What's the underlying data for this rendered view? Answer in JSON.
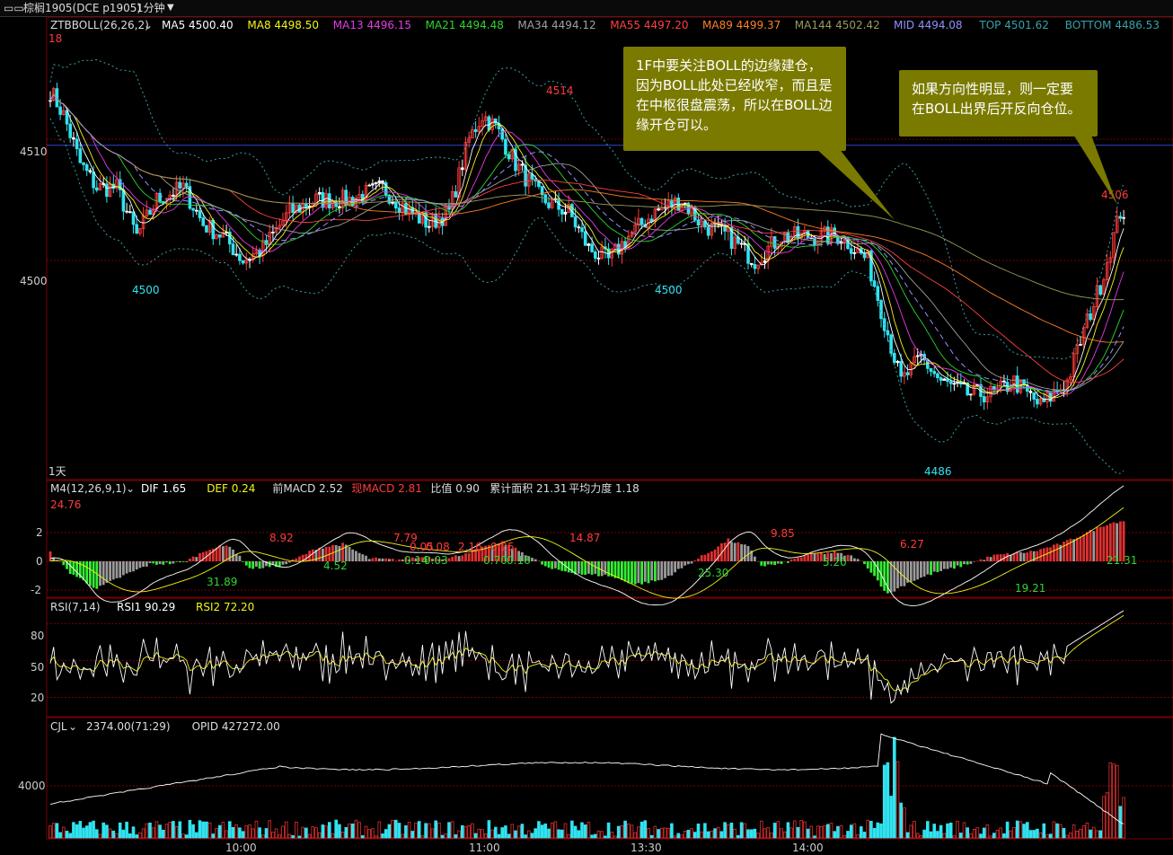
{
  "window": {
    "title_icon": "▭▭",
    "symbol": "棕榈1905(DCE p1905)",
    "period": "1分钟"
  },
  "colors": {
    "up": "#ff3b3b",
    "down": "#31e3f0",
    "flat": "#ffffff",
    "grid": "#7a0000",
    "ma5": "#ffffff",
    "ma8": "#f4f41a",
    "ma13": "#e33ce3",
    "ma21": "#2fd62f",
    "ma34": "#a0a0a0",
    "ma55": "#ff4040",
    "ma89": "#ff7f27",
    "ma144": "#9a9a5a",
    "mid": "#9090ff",
    "top": "#3aa0a8",
    "bottom": "#3aa0a8"
  },
  "main_panel": {
    "indicator": "ZTBBOLL(26,26,2)",
    "legend": [
      {
        "label": "MA5",
        "value": "4500.40",
        "color": "#ffffff"
      },
      {
        "label": "MA8",
        "value": "4498.50",
        "color": "#f4f41a"
      },
      {
        "label": "MA13",
        "value": "4496.15",
        "color": "#e33ce3"
      },
      {
        "label": "MA21",
        "value": "4494.48",
        "color": "#2fd62f"
      },
      {
        "label": "MA34",
        "value": "4494.12",
        "color": "#a0a0a0"
      },
      {
        "label": "MA55",
        "value": "4497.20",
        "color": "#ff4040"
      },
      {
        "label": "MA89",
        "value": "4499.37",
        "color": "#ff7f27"
      },
      {
        "label": "MA144",
        "value": "4502.42",
        "color": "#9a9a5a"
      },
      {
        "label": "MID",
        "value": "4494.08",
        "color": "#9090ff"
      },
      {
        "label": "TOP",
        "value": "4501.62",
        "color": "#3aa0a8"
      },
      {
        "label": "BOTTOM",
        "value": "4486.53",
        "color": "#3aa0a8"
      }
    ],
    "corner_top_left": "18",
    "corner_bottom_left": "1天",
    "price_annotations": [
      "4514",
      "4500",
      "4500",
      "4486",
      "4506"
    ]
  },
  "callouts": [
    {
      "text": "1F中要关注BOLL的边缘建仓，因为BOLL此处已经收窄，而且是在中枢很盘震荡，所以在BOLL边缘开仓可以。"
    },
    {
      "text": "如果方向性明显，则一定要在BOLL出界后开反向仓位。"
    }
  ],
  "macd_panel": {
    "indicator": "M4(12,26,9,1)",
    "legend": [
      {
        "label": "DIF",
        "value": "1.65",
        "color": "#ffffff"
      },
      {
        "label": "DEF",
        "value": "0.24",
        "color": "#f4f41a"
      },
      {
        "label": "前MACD",
        "value": "2.52",
        "color": "#dddddd"
      },
      {
        "label": "现MACD",
        "value": "2.81",
        "color": "#ff3b3b"
      },
      {
        "label": "比值",
        "value": "0.90",
        "color": "#dddddd"
      },
      {
        "label": "累计面积",
        "value": "21.31",
        "color": "#dddddd"
      },
      {
        "label": "平均力度",
        "value": "1.18",
        "color": "#dddddd"
      }
    ],
    "corner_value": "24.76",
    "annotations": [
      {
        "text": "8.92",
        "color": "#ff3b3b"
      },
      {
        "text": "7.79",
        "color": "#ff3b3b"
      },
      {
        "text": "0.05",
        "color": "#ff3b3b"
      },
      {
        "text": "0.08",
        "color": "#ff3b3b"
      },
      {
        "text": "2.16",
        "color": "#ff3b3b"
      },
      {
        "text": "0.25",
        "color": "#ff3b3b"
      },
      {
        "text": "14.87",
        "color": "#ff3b3b"
      },
      {
        "text": "9.85",
        "color": "#ff3b3b"
      },
      {
        "text": "6.27",
        "color": "#ff3b3b"
      },
      {
        "text": "31.89",
        "color": "#2fd62f"
      },
      {
        "text": "4.52",
        "color": "#2fd62f"
      },
      {
        "text": "0.14",
        "color": "#2fd62f"
      },
      {
        "text": "0.03",
        "color": "#2fd62f"
      },
      {
        "text": "0.70",
        "color": "#2fd62f"
      },
      {
        "text": "0.16",
        "color": "#2fd62f"
      },
      {
        "text": "25.30",
        "color": "#2fd62f"
      },
      {
        "text": "5.20",
        "color": "#2fd62f"
      },
      {
        "text": "19.21",
        "color": "#2fd62f"
      },
      {
        "text": "21.31",
        "color": "#2fd62f"
      }
    ]
  },
  "rsi_panel": {
    "indicator": "RSI(7,14)",
    "legend": [
      {
        "label": "RSI1",
        "value": "90.29",
        "color": "#ffffff"
      },
      {
        "label": "RSI2",
        "value": "72.20",
        "color": "#f4f41a"
      }
    ]
  },
  "vol_panel": {
    "indicator": "CJL",
    "legend": [
      {
        "label": "",
        "value": "2374.00(71:29)",
        "color": "#dddddd"
      },
      {
        "label": "OPID",
        "value": "427272.00",
        "color": "#dddddd"
      }
    ]
  },
  "x_axis": {
    "ticks": [
      "10:00",
      "11:00",
      "13:30",
      "14:00"
    ]
  },
  "chart_data": [
    {
      "type": "candlestick",
      "title": "棕榈1905(DCE p1905) 1分钟",
      "ylim": [
        4482,
        4520
      ],
      "y_ticks": [
        4500,
        4510
      ],
      "x_ticks": [
        "10:00",
        "11:00",
        "13:30",
        "14:00"
      ],
      "reference_line": 4509.5,
      "close_path": [
        [
          0,
          4514
        ],
        [
          4,
          4512
        ],
        [
          9,
          4508
        ],
        [
          14,
          4506
        ],
        [
          20,
          4506
        ],
        [
          26,
          4502
        ],
        [
          32,
          4505
        ],
        [
          40,
          4506
        ],
        [
          46,
          4503
        ],
        [
          52,
          4502
        ],
        [
          58,
          4500
        ],
        [
          64,
          4501
        ],
        [
          72,
          4504
        ],
        [
          80,
          4505
        ],
        [
          90,
          4505
        ],
        [
          100,
          4506
        ],
        [
          108,
          4504
        ],
        [
          114,
          4503
        ],
        [
          120,
          4504
        ],
        [
          126,
          4510
        ],
        [
          130,
          4512
        ],
        [
          134,
          4511
        ],
        [
          140,
          4508
        ],
        [
          148,
          4505
        ],
        [
          156,
          4504
        ],
        [
          162,
          4501
        ],
        [
          168,
          4500
        ],
        [
          174,
          4502
        ],
        [
          182,
          4504
        ],
        [
          190,
          4505
        ],
        [
          196,
          4503
        ],
        [
          204,
          4502
        ],
        [
          212,
          4500
        ],
        [
          220,
          4502
        ],
        [
          230,
          4502
        ],
        [
          238,
          4502
        ],
        [
          246,
          4500
        ],
        [
          252,
          4494
        ],
        [
          256,
          4490
        ],
        [
          262,
          4492
        ],
        [
          268,
          4490
        ],
        [
          276,
          4489
        ],
        [
          284,
          4489
        ],
        [
          290,
          4490
        ],
        [
          298,
          4488
        ],
        [
          306,
          4490
        ],
        [
          312,
          4495
        ],
        [
          316,
          4498
        ],
        [
          320,
          4502
        ],
        [
          322,
          4504
        ]
      ],
      "series": [
        {
          "name": "MA5",
          "last": 4500.4
        },
        {
          "name": "MA8",
          "last": 4498.5
        },
        {
          "name": "MA13",
          "last": 4496.15
        },
        {
          "name": "MA21",
          "last": 4494.48
        },
        {
          "name": "MA34",
          "last": 4494.12
        },
        {
          "name": "MA55",
          "last": 4497.2
        },
        {
          "name": "MA89",
          "last": 4499.37
        },
        {
          "name": "MA144",
          "last": 4502.42
        },
        {
          "name": "MID",
          "last": 4494.08
        },
        {
          "name": "TOP",
          "last": 4501.62
        },
        {
          "name": "BOTTOM",
          "last": 4486.53
        }
      ]
    },
    {
      "type": "bar",
      "title": "M4(12,26,9,1)",
      "ylim": [
        -3,
        3
      ],
      "y_ticks": [
        -2,
        0,
        2
      ],
      "hist_path": [
        [
          0,
          0.6
        ],
        [
          6,
          -0.8
        ],
        [
          14,
          -1.9
        ],
        [
          22,
          -1.0
        ],
        [
          30,
          -0.2
        ],
        [
          40,
          -0.1
        ],
        [
          48,
          0.9
        ],
        [
          54,
          1.1
        ],
        [
          60,
          -0.5
        ],
        [
          70,
          -0.3
        ],
        [
          80,
          0.9
        ],
        [
          88,
          1.2
        ],
        [
          96,
          0.2
        ],
        [
          104,
          0.1
        ],
        [
          112,
          0.3
        ],
        [
          120,
          0.2
        ],
        [
          128,
          0.8
        ],
        [
          136,
          1.3
        ],
        [
          144,
          0.4
        ],
        [
          150,
          -0.5
        ],
        [
          160,
          -0.9
        ],
        [
          168,
          -1.0
        ],
        [
          176,
          -1.6
        ],
        [
          184,
          -1.3
        ],
        [
          192,
          -0.2
        ],
        [
          198,
          0.6
        ],
        [
          204,
          1.5
        ],
        [
          210,
          1.0
        ],
        [
          214,
          -0.3
        ],
        [
          220,
          -0.2
        ],
        [
          228,
          0.5
        ],
        [
          236,
          0.6
        ],
        [
          242,
          0.3
        ],
        [
          246,
          -0.4
        ],
        [
          252,
          -2.3
        ],
        [
          258,
          -1.5
        ],
        [
          266,
          -0.8
        ],
        [
          276,
          -0.2
        ],
        [
          284,
          0.4
        ],
        [
          296,
          0.7
        ],
        [
          304,
          1.2
        ],
        [
          312,
          2.0
        ],
        [
          318,
          2.6
        ],
        [
          322,
          2.8
        ]
      ]
    },
    {
      "type": "line",
      "title": "RSI(7,14)",
      "ylim": [
        5,
        100
      ],
      "y_ticks": [
        20,
        50,
        80
      ],
      "series": [
        {
          "name": "RSI1",
          "last": 90.29
        },
        {
          "name": "RSI2",
          "last": 72.2
        }
      ]
    },
    {
      "type": "bar",
      "title": "CJL",
      "y_ticks": [
        4000
      ],
      "series": [
        {
          "name": "OPID",
          "last": 427272.0
        }
      ]
    }
  ]
}
